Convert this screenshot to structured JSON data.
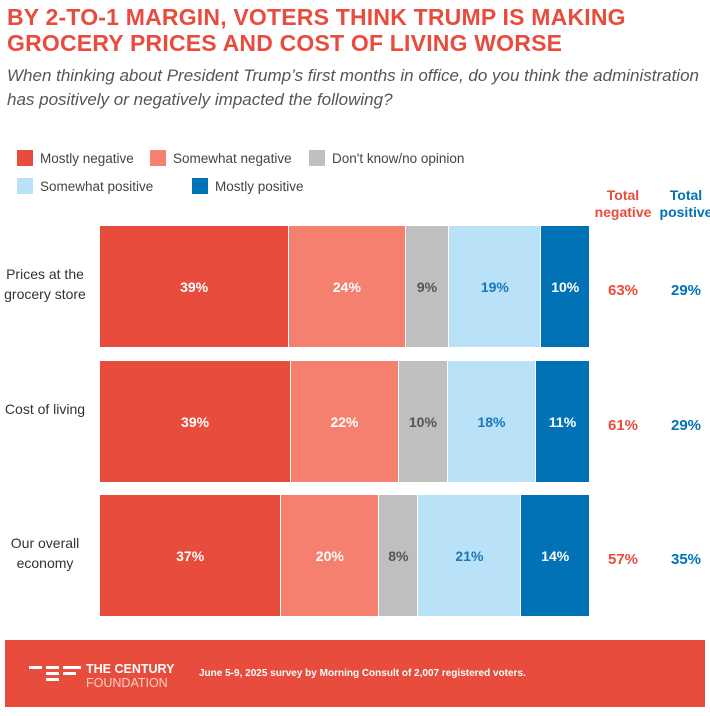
{
  "title": "BY 2-TO-1 MARGIN, VOTERS THINK TRUMP IS MAKING GROCERY PRICES AND COST OF LIVING WORSE",
  "subtitle": "When thinking about President Trump’s first months in office, do you think the administration has positively or negatively impacted the following?",
  "chart_data": {
    "type": "bar",
    "orientation": "horizontal-stacked",
    "categories": [
      "Prices at the grocery store",
      "Cost of living",
      "Our overall economy"
    ],
    "series": [
      {
        "name": "Mostly negative",
        "color": "#e84c3d",
        "text_color": "#ffffff",
        "values": [
          39,
          39,
          37
        ]
      },
      {
        "name": "Somewhat negative",
        "color": "#f58070",
        "text_color": "#ffffff",
        "values": [
          24,
          22,
          20
        ]
      },
      {
        "name": "Don't know/no opinion",
        "color": "#bfbfbf",
        "text_color": "#555555",
        "values": [
          9,
          10,
          8
        ]
      },
      {
        "name": "Somewhat positive",
        "color": "#b9e1f8",
        "text_color": "#1a78b8",
        "values": [
          19,
          18,
          21
        ]
      },
      {
        "name": "Mostly positive",
        "color": "#0072b5",
        "text_color": "#ffffff",
        "values": [
          10,
          11,
          14
        ]
      }
    ],
    "totals": {
      "negative_label": "Total negative",
      "positive_label": "Total positive",
      "negative": [
        63,
        61,
        57
      ],
      "positive": [
        29,
        29,
        35
      ]
    },
    "unit": "%"
  },
  "footer": {
    "logo_line1": "THE CENTURY",
    "logo_line2": "FOUNDATION",
    "note": "June 5-9, 2025 survey by Morning Consult of 2,007 registered voters."
  }
}
